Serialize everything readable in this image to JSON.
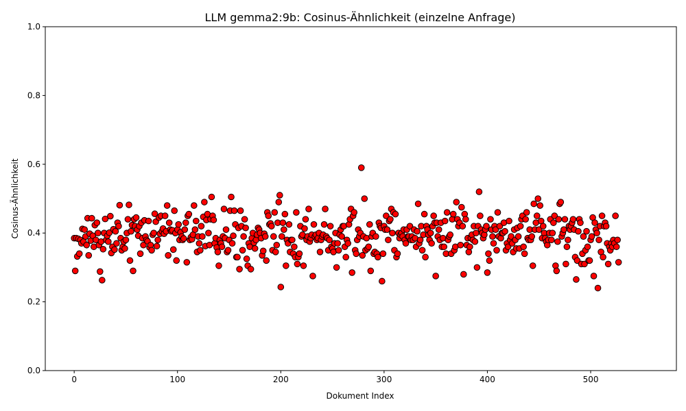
{
  "chart_data": {
    "type": "scatter",
    "title": "LLM gemma2:9b: Cosinus-Ähnlichkeit (einzelne Anfrage)",
    "xlabel": "Dokument Index",
    "ylabel": "Cosinus-Ähnlichkeit",
    "xlim": [
      -28,
      583
    ],
    "ylim": [
      0,
      1
    ],
    "xticks": [
      "0",
      "100",
      "200",
      "300",
      "400",
      "500"
    ],
    "yticks": [
      "0.0",
      "0.2",
      "0.4",
      "0.6",
      "0.8",
      "1.0"
    ],
    "grid": false,
    "legend": "none",
    "marker_color": "#ff0000",
    "marker_edge_color": "#000000",
    "n_points": 557,
    "x": "0..556 (Dokument Index)",
    "y": [
      0.385,
      0.29,
      0.385,
      0.332,
      0.383,
      0.34,
      0.38,
      0.37,
      0.412,
      0.375,
      0.41,
      0.39,
      0.365,
      0.443,
      0.335,
      0.398,
      0.378,
      0.443,
      0.392,
      0.36,
      0.423,
      0.38,
      0.43,
      0.4,
      0.365,
      0.288,
      0.375,
      0.263,
      0.353,
      0.4,
      0.441,
      0.38,
      0.392,
      0.375,
      0.401,
      0.449,
      0.342,
      0.36,
      0.411,
      0.352,
      0.405,
      0.37,
      0.43,
      0.42,
      0.481,
      0.385,
      0.35,
      0.36,
      0.375,
      0.355,
      0.38,
      0.4,
      0.44,
      0.482,
      0.32,
      0.405,
      0.423,
      0.29,
      0.44,
      0.42,
      0.445,
      0.41,
      0.392,
      0.42,
      0.34,
      0.43,
      0.385,
      0.365,
      0.437,
      0.39,
      0.38,
      0.376,
      0.435,
      0.358,
      0.365,
      0.35,
      0.395,
      0.4,
      0.456,
      0.433,
      0.362,
      0.38,
      0.445,
      0.398,
      0.45,
      0.405,
      0.413,
      0.398,
      0.45,
      0.405,
      0.48,
      0.335,
      0.43,
      0.41,
      0.405,
      0.408,
      0.352,
      0.465,
      0.4,
      0.32,
      0.41,
      0.425,
      0.38,
      0.402,
      0.39,
      0.38,
      0.384,
      0.41,
      0.43,
      0.315,
      0.45,
      0.455,
      0.38,
      0.388,
      0.382,
      0.395,
      0.48,
      0.41,
      0.435,
      0.345,
      0.39,
      0.37,
      0.35,
      0.42,
      0.39,
      0.447,
      0.49,
      0.362,
      0.438,
      0.455,
      0.4,
      0.365,
      0.44,
      0.505,
      0.45,
      0.438,
      0.37,
      0.385,
      0.358,
      0.345,
      0.305,
      0.38,
      0.37,
      0.36,
      0.39,
      0.47,
      0.385,
      0.41,
      0.345,
      0.35,
      0.38,
      0.465,
      0.505,
      0.37,
      0.392,
      0.465,
      0.425,
      0.33,
      0.33,
      0.415,
      0.295,
      0.465,
      0.42,
      0.35,
      0.39,
      0.44,
      0.415,
      0.325,
      0.305,
      0.37,
      0.36,
      0.295,
      0.385,
      0.4,
      0.372,
      0.355,
      0.38,
      0.395,
      0.415,
      0.41,
      0.4,
      0.385,
      0.335,
      0.348,
      0.398,
      0.39,
      0.32,
      0.46,
      0.45,
      0.425,
      0.428,
      0.42,
      0.35,
      0.39,
      0.46,
      0.345,
      0.365,
      0.43,
      0.49,
      0.51,
      0.243,
      0.39,
      0.43,
      0.41,
      0.455,
      0.305,
      0.38,
      0.37,
      0.425,
      0.345,
      0.38,
      0.38,
      0.34,
      0.36,
      0.33,
      0.46,
      0.31,
      0.33,
      0.34,
      0.42,
      0.39,
      0.395,
      0.305,
      0.413,
      0.44,
      0.38,
      0.39,
      0.47,
      0.375,
      0.385,
      0.395,
      0.275,
      0.425,
      0.39,
      0.395,
      0.38,
      0.385,
      0.4,
      0.345,
      0.38,
      0.39,
      0.395,
      0.425,
      0.47,
      0.39,
      0.385,
      0.35,
      0.38,
      0.42,
      0.36,
      0.355,
      0.345,
      0.37,
      0.4,
      0.3,
      0.37,
      0.35,
      0.395,
      0.41,
      0.39,
      0.42,
      0.42,
      0.36,
      0.33,
      0.38,
      0.37,
      0.425,
      0.44,
      0.47,
      0.285,
      0.45,
      0.46,
      0.35,
      0.34,
      0.38,
      0.41,
      0.39,
      0.4,
      0.59,
      0.335,
      0.39,
      0.5,
      0.35,
      0.385,
      0.355,
      0.36,
      0.425,
      0.29,
      0.39,
      0.4,
      0.34,
      0.345,
      0.39,
      0.34,
      0.33,
      0.43,
      0.42,
      0.415,
      0.26,
      0.34,
      0.42,
      0.41,
      0.45,
      0.41,
      0.38,
      0.435,
      0.44,
      0.47,
      0.4,
      0.46,
      0.35,
      0.455,
      0.33,
      0.34,
      0.4,
      0.385,
      0.395,
      0.4,
      0.39,
      0.41,
      0.38,
      0.37,
      0.41,
      0.39,
      0.39,
      0.42,
      0.38,
      0.39,
      0.38,
      0.41,
      0.385,
      0.36,
      0.405,
      0.485,
      0.37,
      0.38,
      0.42,
      0.35,
      0.395,
      0.455,
      0.33,
      0.42,
      0.41,
      0.395,
      0.38,
      0.4,
      0.37,
      0.42,
      0.45,
      0.43,
      0.275,
      0.43,
      0.39,
      0.41,
      0.38,
      0.43,
      0.36,
      0.385,
      0.36,
      0.435,
      0.34,
      0.46,
      0.38,
      0.39,
      0.395,
      0.34,
      0.44,
      0.455,
      0.35,
      0.36,
      0.49,
      0.44,
      0.42,
      0.43,
      0.365,
      0.475,
      0.42,
      0.28,
      0.455,
      0.44,
      0.365,
      0.385,
      0.345,
      0.36,
      0.385,
      0.395,
      0.38,
      0.42,
      0.375,
      0.4,
      0.3,
      0.42,
      0.52,
      0.45,
      0.41,
      0.4,
      0.385,
      0.395,
      0.41,
      0.42,
      0.285,
      0.34,
      0.32,
      0.44,
      0.41,
      0.39,
      0.37,
      0.42,
      0.41,
      0.35,
      0.46,
      0.39,
      0.42,
      0.385,
      0.4,
      0.4,
      0.43,
      0.405,
      0.35,
      0.37,
      0.36,
      0.435,
      0.38,
      0.39,
      0.37,
      0.345,
      0.41,
      0.38,
      0.355,
      0.415,
      0.39,
      0.355,
      0.42,
      0.44,
      0.45,
      0.36,
      0.34,
      0.44,
      0.46,
      0.385,
      0.38,
      0.41,
      0.38,
      0.39,
      0.305,
      0.485,
      0.41,
      0.43,
      0.45,
      0.5,
      0.41,
      0.48,
      0.435,
      0.385,
      0.42,
      0.4,
      0.385,
      0.375,
      0.365,
      0.38,
      0.4,
      0.44,
      0.38,
      0.4,
      0.43,
      0.45,
      0.305,
      0.29,
      0.375,
      0.44,
      0.485,
      0.49,
      0.39,
      0.4,
      0.41,
      0.44,
      0.31,
      0.36,
      0.38,
      0.42,
      0.41,
      0.42,
      0.43,
      0.44,
      0.41,
      0.33,
      0.265,
      0.32,
      0.405,
      0.44,
      0.43,
      0.31,
      0.34,
      0.39,
      0.31,
      0.35,
      0.405,
      0.36,
      0.32,
      0.32,
      0.38,
      0.39,
      0.445,
      0.275,
      0.43,
      0.41,
      0.4,
      0.24,
      0.38,
      0.42,
      0.345,
      0.45,
      0.33,
      0.42,
      0.43,
      0.42,
      0.37,
      0.31,
      0.36,
      0.35,
      0.37,
      0.36,
      0.38,
      0.37,
      0.45,
      0.36,
      0.38,
      0.315
    ]
  }
}
